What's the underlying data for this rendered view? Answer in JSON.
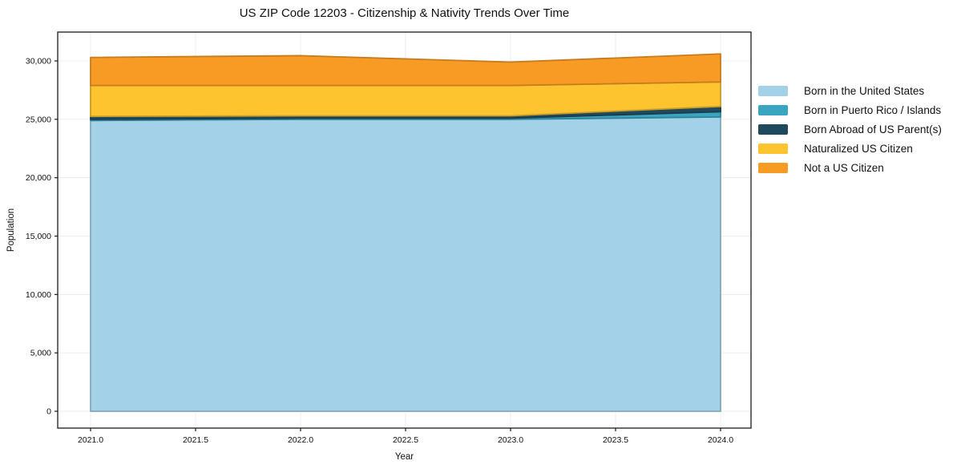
{
  "figure": {
    "title": "US ZIP Code 12203 - Citizenship & Nativity Trends Over Time",
    "background": "#ffffff"
  },
  "chart_data": {
    "type": "area",
    "stacked": true,
    "title": "US ZIP Code 12203 - Citizenship & Nativity Trends Over Time",
    "xlabel": "Year",
    "ylabel": "Population",
    "x": [
      2021,
      2022,
      2023,
      2024
    ],
    "series": [
      {
        "name": "Born in the United States",
        "color": "#a3d2e8",
        "values": [
          24900,
          25000,
          25000,
          25200
        ]
      },
      {
        "name": "Born in Puerto Rico / Islands",
        "color": "#3aa5c1",
        "values": [
          100,
          100,
          100,
          450
        ]
      },
      {
        "name": "Born Abroad of US Parent(s)",
        "color": "#1f4a5e",
        "values": [
          250,
          200,
          200,
          450
        ]
      },
      {
        "name": "Naturalized US Citizen",
        "color": "#fdc430",
        "values": [
          2650,
          2600,
          2600,
          2100
        ]
      },
      {
        "name": "Not a US Citizen",
        "color": "#f89b25",
        "values": [
          2400,
          2550,
          2000,
          2400
        ]
      }
    ],
    "totals": [
      30300,
      30450,
      29900,
      30600
    ],
    "x_ticks": {
      "values": [
        2021.0,
        2021.5,
        2022.0,
        2022.5,
        2023.0,
        2023.5,
        2024.0
      ],
      "labels": [
        "2021.0",
        "2021.5",
        "2022.0",
        "2022.5",
        "2023.0",
        "2023.5",
        "2024.0"
      ]
    },
    "y_ticks": {
      "values": [
        0,
        5000,
        10000,
        15000,
        20000,
        25000,
        30000
      ],
      "labels": [
        "0",
        "5,000",
        "10,000",
        "15,000",
        "20,000",
        "25,000",
        "30,000"
      ]
    },
    "xlim": [
      2020.843,
      2024.145
    ],
    "ylim": [
      -1442,
      32470
    ],
    "grid": true,
    "legend_position": "right",
    "colors": {
      "gridline": "#ececec",
      "spine": "#1a1a1a",
      "tick_text": "#111111"
    }
  }
}
